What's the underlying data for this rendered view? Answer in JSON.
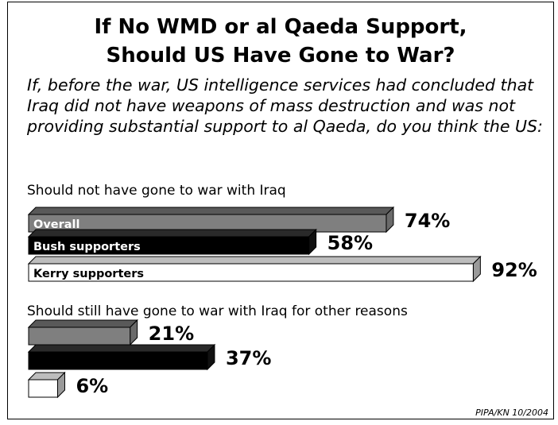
{
  "title_line1": "If No WMD or al Qaeda Support,",
  "title_line2": "Should US Have Gone to War?",
  "question": "If, before the war, US intelligence services had concluded that Iraq did not have weapons of mass destruction and was not providing substantial support to al Qaeda, do you think the US:",
  "source_note": "PIPA/KN 10/2004",
  "colors": {
    "overall": "#7f7f7f",
    "bush": "#000000",
    "kerry": "#ffffff"
  },
  "chart_data": {
    "type": "bar",
    "orientation": "horizontal",
    "series": [
      {
        "name": "Overall",
        "values": [
          74,
          21
        ]
      },
      {
        "name": "Bush supporters",
        "values": [
          58,
          37
        ]
      },
      {
        "name": "Kerry supporters",
        "values": [
          92,
          6
        ]
      }
    ],
    "groups": [
      {
        "label": "Should not have gone to war with Iraq",
        "values": [
          74,
          58,
          92
        ],
        "value_labels": [
          "74%",
          "58%",
          "92%"
        ]
      },
      {
        "label": "Should still have gone to war with Iraq for other reasons",
        "values": [
          21,
          37,
          6
        ],
        "value_labels": [
          "21%",
          "37%",
          "6%"
        ]
      }
    ],
    "xlim": [
      0,
      100
    ]
  }
}
